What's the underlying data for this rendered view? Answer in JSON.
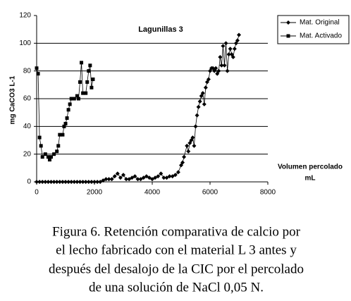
{
  "chart_data": {
    "type": "line",
    "title": "Lagunillas 3",
    "y_label": "mg CaCO3 L-1",
    "x_label": [
      "Volumen percolado",
      "mL"
    ],
    "xlim": [
      0,
      8000
    ],
    "xticks": [
      0,
      2000,
      4000,
      6000,
      8000
    ],
    "ylim": [
      0,
      120
    ],
    "yticks": [
      0,
      20,
      40,
      60,
      80,
      100,
      120
    ],
    "grid": true,
    "legend": "top-right",
    "series": [
      {
        "name": "Mat. Original",
        "color": "#000000",
        "marker": "diamond",
        "x": [
          0,
          100,
          200,
          300,
          400,
          500,
          600,
          700,
          800,
          900,
          1000,
          1100,
          1200,
          1300,
          1400,
          1500,
          1600,
          1700,
          1800,
          1900,
          2000,
          2100,
          2200,
          2300,
          2400,
          2500,
          2600,
          2700,
          2800,
          2900,
          3000,
          3100,
          3200,
          3300,
          3400,
          3500,
          3600,
          3700,
          3800,
          3900,
          4000,
          4100,
          4200,
          4300,
          4400,
          4500,
          4600,
          4700,
          4800,
          4900,
          5000,
          5050,
          5100,
          5200,
          5250,
          5300,
          5350,
          5400,
          5450,
          5500,
          5550,
          5600,
          5650,
          5700,
          5750,
          5800,
          5850,
          5900,
          5950,
          6000,
          6050,
          6100,
          6150,
          6200,
          6250,
          6300,
          6350,
          6400,
          6450,
          6500,
          6550,
          6600,
          6650,
          6700,
          6750,
          6800,
          6850,
          6900,
          6950,
          7000
        ],
        "values": [
          0,
          0,
          0,
          0,
          0,
          0,
          0,
          0,
          0,
          0,
          0,
          0,
          0,
          0,
          0,
          0,
          0,
          0,
          0,
          0,
          0,
          0,
          0,
          1,
          2,
          2,
          2,
          4,
          6,
          3,
          5,
          2,
          2,
          3,
          4,
          2,
          2,
          3,
          4,
          3,
          2,
          3,
          4,
          6,
          3,
          3,
          4,
          4,
          5,
          7,
          12,
          14,
          18,
          26,
          22,
          28,
          30,
          32,
          26,
          40,
          48,
          54,
          58,
          62,
          64,
          56,
          68,
          72,
          74,
          80,
          82,
          82,
          80,
          82,
          78,
          80,
          90,
          84,
          98,
          84,
          100,
          80,
          92,
          96,
          92,
          90,
          96,
          100,
          102,
          106
        ]
      },
      {
        "name": "Mat. Activado",
        "color": "#000000",
        "marker": "square",
        "x": [
          0,
          50,
          100,
          150,
          200,
          300,
          400,
          450,
          500,
          600,
          700,
          750,
          800,
          900,
          950,
          1000,
          1050,
          1100,
          1150,
          1200,
          1300,
          1400,
          1450,
          1500,
          1550,
          1600,
          1700,
          1750,
          1800,
          1850,
          1900,
          1950
        ],
        "values": [
          82,
          78,
          32,
          26,
          18,
          20,
          18,
          16,
          18,
          20,
          22,
          26,
          34,
          34,
          40,
          42,
          46,
          52,
          56,
          60,
          60,
          62,
          60,
          72,
          86,
          64,
          64,
          72,
          80,
          84,
          68,
          74
        ]
      }
    ],
    "caption": [
      "Figura 6. Retención comparativa de calcio por",
      "el lecho fabricado con el material L 3 antes y",
      "después del desalojo de la CIC por el percolado",
      "de una solución de NaCl 0,05 N."
    ]
  }
}
